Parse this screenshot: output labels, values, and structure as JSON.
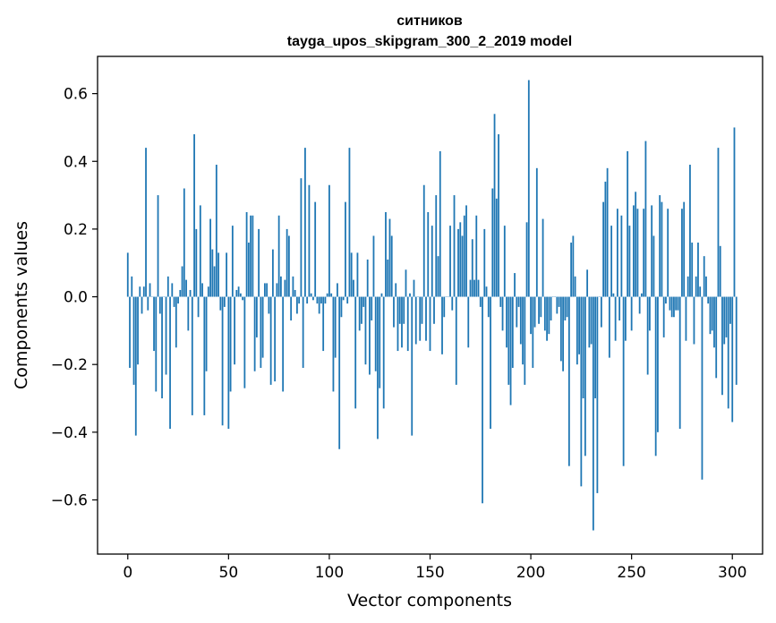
{
  "chart_data": {
    "type": "bar",
    "title": "ситников",
    "subtitle": "tayga_upos_skipgram_300_2_2019 model",
    "xlabel": "Vector components",
    "ylabel": "Components values",
    "xlim": [
      -15,
      315
    ],
    "ylim": [
      -0.76,
      0.71
    ],
    "xticks": [
      0,
      50,
      100,
      150,
      200,
      250,
      300
    ],
    "yticks": [
      -0.6,
      -0.4,
      -0.2,
      0.0,
      0.2,
      0.4,
      0.6
    ],
    "ytick_labels": [
      "−0.6",
      "−0.4",
      "−0.2",
      "0.0",
      "0.2",
      "0.4",
      "0.6"
    ],
    "bar_color": "#1f77b4",
    "x_start": 0,
    "values": [
      0.13,
      -0.21,
      0.06,
      -0.26,
      -0.41,
      -0.2,
      0.03,
      -0.05,
      0.03,
      0.44,
      -0.04,
      0.04,
      0.0,
      -0.16,
      -0.28,
      0.3,
      -0.05,
      -0.3,
      0.0,
      -0.23,
      0.06,
      -0.39,
      0.04,
      -0.03,
      -0.15,
      -0.02,
      0.02,
      0.09,
      0.32,
      0.05,
      -0.1,
      0.02,
      -0.35,
      0.48,
      0.2,
      -0.06,
      0.27,
      0.04,
      -0.35,
      -0.22,
      0.03,
      0.23,
      0.14,
      0.09,
      0.39,
      0.13,
      -0.04,
      -0.38,
      -0.03,
      0.13,
      -0.39,
      -0.28,
      0.21,
      -0.2,
      0.02,
      0.03,
      0.01,
      -0.01,
      -0.27,
      0.25,
      0.16,
      0.24,
      0.24,
      -0.22,
      -0.12,
      0.2,
      -0.21,
      -0.18,
      0.04,
      0.04,
      -0.05,
      -0.26,
      0.14,
      -0.25,
      0.04,
      0.24,
      0.06,
      -0.28,
      0.05,
      0.2,
      0.18,
      -0.07,
      0.06,
      0.02,
      -0.05,
      -0.02,
      0.35,
      -0.21,
      0.44,
      -0.02,
      0.33,
      0.01,
      -0.01,
      0.28,
      -0.02,
      -0.05,
      -0.02,
      -0.16,
      -0.02,
      0.01,
      0.33,
      0.01,
      -0.28,
      -0.18,
      0.04,
      -0.45,
      -0.06,
      -0.01,
      0.28,
      -0.02,
      0.44,
      0.13,
      0.05,
      -0.33,
      0.13,
      -0.1,
      -0.08,
      -0.03,
      -0.2,
      0.11,
      -0.23,
      -0.07,
      0.18,
      -0.22,
      -0.42,
      -0.27,
      0.01,
      -0.33,
      0.25,
      0.11,
      0.23,
      0.18,
      -0.09,
      0.04,
      -0.16,
      -0.08,
      -0.15,
      -0.08,
      0.08,
      -0.16,
      0.01,
      -0.41,
      0.05,
      -0.14,
      0.0,
      -0.13,
      -0.08,
      0.33,
      -0.13,
      0.25,
      -0.16,
      0.21,
      -0.08,
      0.3,
      0.12,
      0.43,
      -0.17,
      -0.06,
      0.0,
      0.0,
      0.21,
      -0.04,
      0.3,
      -0.26,
      0.2,
      0.22,
      0.18,
      0.24,
      0.27,
      -0.15,
      0.05,
      0.17,
      0.05,
      0.24,
      0.05,
      -0.03,
      -0.61,
      0.2,
      0.03,
      -0.06,
      -0.39,
      0.32,
      0.54,
      0.29,
      0.48,
      -0.03,
      -0.1,
      0.21,
      -0.15,
      -0.26,
      -0.32,
      -0.21,
      0.07,
      -0.09,
      -0.03,
      -0.14,
      -0.2,
      -0.26,
      0.22,
      0.64,
      -0.11,
      -0.21,
      -0.09,
      0.38,
      -0.08,
      -0.06,
      0.23,
      -0.1,
      -0.13,
      -0.11,
      -0.07,
      0.0,
      0.0,
      -0.05,
      -0.03,
      -0.19,
      -0.22,
      -0.07,
      -0.06,
      -0.5,
      0.16,
      0.18,
      0.06,
      -0.2,
      -0.17,
      -0.56,
      -0.3,
      -0.47,
      0.08,
      -0.15,
      -0.14,
      -0.69,
      -0.3,
      -0.58,
      0.0,
      -0.09,
      0.28,
      0.34,
      0.38,
      -0.18,
      0.21,
      0.01,
      -0.13,
      0.26,
      -0.07,
      0.24,
      -0.5,
      -0.13,
      0.43,
      0.21,
      -0.1,
      0.27,
      0.31,
      0.26,
      -0.05,
      0.01,
      0.26,
      0.46,
      -0.23,
      -0.1,
      0.27,
      0.18,
      -0.47,
      -0.4,
      0.3,
      0.28,
      -0.12,
      -0.02,
      0.26,
      -0.04,
      -0.06,
      -0.06,
      -0.04,
      -0.04,
      -0.39,
      0.26,
      0.28,
      -0.13,
      0.06,
      0.39,
      0.16,
      -0.14,
      0.06,
      0.16,
      0.03,
      -0.54,
      0.12,
      0.06,
      -0.02,
      -0.11,
      -0.1,
      -0.15,
      -0.24,
      0.44,
      0.15,
      -0.29,
      -0.14,
      -0.12,
      -0.33,
      -0.08,
      -0.37,
      0.5,
      -0.26
    ]
  }
}
